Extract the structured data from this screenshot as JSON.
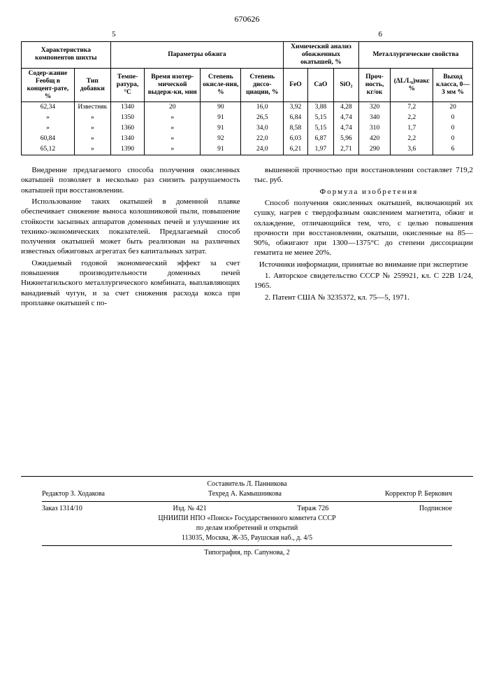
{
  "doc_number": "670626",
  "page_left": "5",
  "page_right": "6",
  "table": {
    "group_headers": [
      "Характеристика компонентов шихты",
      "Параметры обжига",
      "Химический анализ обожженных окатышей, %",
      "Металлургические свойства"
    ],
    "cols": [
      "Содер-жание Feобщ в концент-рате, %",
      "Тип добавки",
      "Темпе-ратура, °С",
      "Время изотер-мической выдерж-ки, мин",
      "Степень окисле-ния, %",
      "Степень диссо-циации, %",
      "FeO",
      "CaO",
      "SiO₂",
      "Проч-ность, кг/ок",
      "(ΔL/L₀)макс %",
      "Выход класса, 0—3 мм %"
    ],
    "rows": [
      [
        "62,34",
        "Известняк",
        "1340",
        "20",
        "90",
        "16,0",
        "3,92",
        "3,88",
        "4,28",
        "320",
        "7,2",
        "20"
      ],
      [
        "»",
        "»",
        "1350",
        "»",
        "91",
        "26,5",
        "6,84",
        "5,15",
        "4,74",
        "340",
        "2,2",
        "0"
      ],
      [
        "»",
        "»",
        "1360",
        "»",
        "91",
        "34,0",
        "8,58",
        "5,15",
        "4,74",
        "310",
        "1,7",
        "0"
      ],
      [
        "60,84",
        "»",
        "1340",
        "»",
        "92",
        "22,0",
        "6,03",
        "6,87",
        "5,96",
        "420",
        "2,2",
        "0"
      ],
      [
        "65,12",
        "»",
        "1390",
        "»",
        "91",
        "24,0",
        "6,21",
        "1,97",
        "2,71",
        "290",
        "3,6",
        "6"
      ]
    ]
  },
  "body": {
    "p1": "Внедрение предлагаемого способа получения окисленных окатышей позволяет в несколько раз снизить разрушаемость окатышей при восстановлении.",
    "p2": "Использование таких окатышей в доменной плавке обеспечивает снижение выноса колошниковой пыли, повышение стойкости засыпных аппаратов доменных печей и улучшение их технико-экономических показателей. Предлагаемый способ получения окатышей может быть реализован на различных известных обжиговых агрегатах без капитальных затрат.",
    "p3": "Ожидаемый годовой экономический эффект за счет повышения производительности доменных печей Нижнетагильского металлургического комбината, выплавляющих ванадиевый чугун, и за счет снижения расхода кокса при проплавке окатышей с по-",
    "p4": "вышенной прочностью при восстановлении составляет 719,2 тыс. руб.",
    "formula_title": "Формула изобретения",
    "p5": "Способ получения окисленных окатышей, включающий их сушку, нагрев с твердофазным окислением магнетита, обжиг и охлаждение, отличающийся тем, что, с целью повышения прочности при восстановлении, окатыши, окисленные на 85—90%, обжигают при 1300—1375°С до степени диссоциации гематита не менее 20%.",
    "sources_title": "Источники информации, принятые во внимание при экспертизе",
    "s1": "1. Авторское свидетельство СССР № 259921, кл. С 22В 1/24, 1965.",
    "s2": "2. Патент США № 3235372, кл. 75—5, 1971."
  },
  "imprint": {
    "compiler": "Составитель Л. Панникова",
    "editor": "Редактор З. Ходакова",
    "tech": "Техред А. Камышникова",
    "corrector": "Корректор Р. Беркович",
    "order": "Заказ 1314/10",
    "izd": "Изд. № 421",
    "tiraj": "Тираж 726",
    "sign": "Подписное",
    "org1": "ЦНИИПИ НПО «Поиск» Государственного комитета СССР",
    "org2": "по делам изобретений и открытий",
    "addr": "113035, Москва, Ж-35, Раушская наб., д. 4/5",
    "typ": "Типография, пр. Сапунова, 2"
  }
}
